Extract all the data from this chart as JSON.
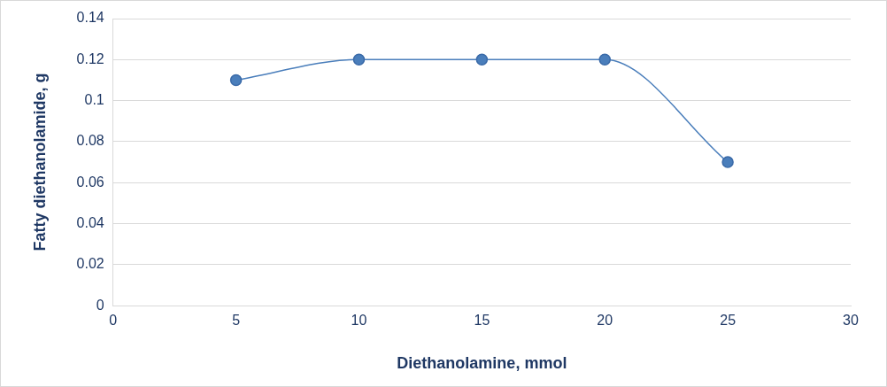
{
  "chart_data": {
    "type": "line",
    "xlabel": "Diethanolamine, mmol",
    "ylabel": "Fatty diethanolamide, g",
    "x": [
      5,
      10,
      15,
      20,
      25
    ],
    "series": [
      {
        "color": "#4a7ebb",
        "values": [
          0.11,
          0.12,
          0.12,
          0.12,
          0.07
        ]
      }
    ],
    "xlim": [
      0,
      30
    ],
    "xticks": [
      0,
      5,
      10,
      15,
      20,
      25,
      30
    ],
    "ylim": [
      0,
      0.14
    ],
    "yticks": [
      0,
      0.02,
      0.04,
      0.06,
      0.08,
      0.1,
      0.12,
      0.14
    ],
    "grid": "y",
    "marker": "circle",
    "line_style": "solid",
    "legend": false
  }
}
